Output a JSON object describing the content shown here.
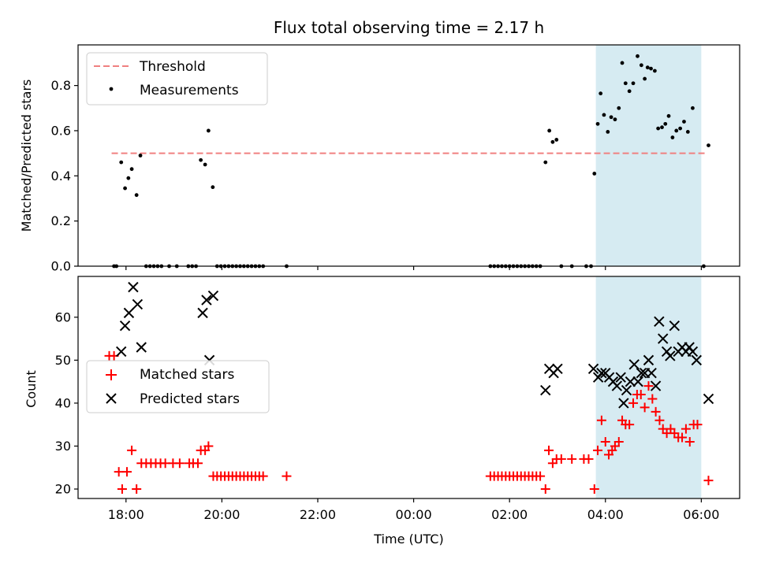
{
  "chart_data": [
    {
      "type": "scatter",
      "title": "Flux total observing time = 2.17 h",
      "xlabel": "",
      "ylabel": "Matched/Predicted stars",
      "x_unit": "hours (UTC), continuing past midnight",
      "xlim": [
        17.0,
        30.8
      ],
      "ylim": [
        0.0,
        0.98
      ],
      "yticks": [
        0.0,
        0.2,
        0.4,
        0.6,
        0.8
      ],
      "grid": false,
      "legend": {
        "placement": "top-left",
        "entries": [
          "Threshold",
          "Measurements"
        ]
      },
      "shaded_region": {
        "x": [
          27.8,
          30.0
        ],
        "color": "#add8e6"
      },
      "threshold": {
        "name": "Threshold",
        "value": 0.5,
        "x": [
          17.7,
          30.1
        ],
        "color": "#f08080"
      },
      "series": [
        {
          "name": "Measurements",
          "color": "#000000",
          "points": [
            [
              17.75,
              0
            ],
            [
              17.8,
              0
            ],
            [
              17.9,
              0.46
            ],
            [
              17.98,
              0.345
            ],
            [
              18.05,
              0.39
            ],
            [
              18.12,
              0.43
            ],
            [
              18.22,
              0.315
            ],
            [
              18.3,
              0.49
            ],
            [
              18.42,
              0
            ],
            [
              18.5,
              0
            ],
            [
              18.58,
              0
            ],
            [
              18.66,
              0
            ],
            [
              18.74,
              0
            ],
            [
              18.9,
              0
            ],
            [
              19.06,
              0
            ],
            [
              19.3,
              0
            ],
            [
              19.38,
              0
            ],
            [
              19.46,
              0
            ],
            [
              19.56,
              0.47
            ],
            [
              19.65,
              0.45
            ],
            [
              19.72,
              0.6
            ],
            [
              19.81,
              0.35
            ],
            [
              19.9,
              0
            ],
            [
              19.98,
              0
            ],
            [
              20.06,
              0
            ],
            [
              20.14,
              0
            ],
            [
              20.22,
              0
            ],
            [
              20.3,
              0
            ],
            [
              20.38,
              0
            ],
            [
              20.46,
              0
            ],
            [
              20.54,
              0
            ],
            [
              20.62,
              0
            ],
            [
              20.7,
              0
            ],
            [
              20.78,
              0
            ],
            [
              20.86,
              0
            ],
            [
              21.35,
              0
            ],
            [
              25.6,
              0
            ],
            [
              25.68,
              0
            ],
            [
              25.76,
              0
            ],
            [
              25.84,
              0
            ],
            [
              25.92,
              0
            ],
            [
              26.0,
              0
            ],
            [
              26.08,
              0
            ],
            [
              26.16,
              0
            ],
            [
              26.24,
              0
            ],
            [
              26.32,
              0
            ],
            [
              26.4,
              0
            ],
            [
              26.48,
              0
            ],
            [
              26.56,
              0
            ],
            [
              26.64,
              0
            ],
            [
              26.75,
              0.46
            ],
            [
              26.83,
              0.6
            ],
            [
              26.9,
              0.55
            ],
            [
              26.98,
              0.56
            ],
            [
              27.08,
              0
            ],
            [
              27.3,
              0
            ],
            [
              27.6,
              0
            ],
            [
              27.7,
              0
            ],
            [
              27.77,
              0.41
            ],
            [
              27.84,
              0.63
            ],
            [
              27.9,
              0.765
            ],
            [
              27.97,
              0.67
            ],
            [
              28.05,
              0.595
            ],
            [
              28.12,
              0.66
            ],
            [
              28.2,
              0.65
            ],
            [
              28.28,
              0.7
            ],
            [
              28.35,
              0.9
            ],
            [
              28.42,
              0.81
            ],
            [
              28.5,
              0.775
            ],
            [
              28.58,
              0.81
            ],
            [
              28.67,
              0.93
            ],
            [
              28.75,
              0.89
            ],
            [
              28.82,
              0.83
            ],
            [
              28.88,
              0.88
            ],
            [
              28.95,
              0.875
            ],
            [
              29.03,
              0.865
            ],
            [
              29.1,
              0.61
            ],
            [
              29.18,
              0.615
            ],
            [
              29.25,
              0.63
            ],
            [
              29.32,
              0.665
            ],
            [
              29.4,
              0.57
            ],
            [
              29.48,
              0.6
            ],
            [
              29.56,
              0.61
            ],
            [
              29.64,
              0.64
            ],
            [
              29.72,
              0.595
            ],
            [
              29.82,
              0.7
            ],
            [
              30.05,
              0
            ],
            [
              30.15,
              0.535
            ]
          ]
        }
      ]
    },
    {
      "type": "scatter",
      "title": "",
      "xlabel": "Time (UTC)",
      "ylabel": "Count",
      "x_unit": "hours (UTC), continuing past midnight",
      "xlim": [
        17.0,
        30.8
      ],
      "ylim": [
        17.8,
        69.5
      ],
      "yticks": [
        20,
        30,
        40,
        50,
        60
      ],
      "xticks": [
        {
          "value": 18,
          "label": "18:00"
        },
        {
          "value": 20,
          "label": "20:00"
        },
        {
          "value": 22,
          "label": "22:00"
        },
        {
          "value": 24,
          "label": "00:00"
        },
        {
          "value": 26,
          "label": "02:00"
        },
        {
          "value": 28,
          "label": "04:00"
        },
        {
          "value": 30,
          "label": "06:00"
        }
      ],
      "grid": false,
      "legend": {
        "placement": "center-left",
        "entries": [
          "Matched stars",
          "Predicted stars"
        ]
      },
      "shaded_region": {
        "x": [
          27.8,
          30.0
        ],
        "color": "#add8e6"
      },
      "series": [
        {
          "name": "Matched stars",
          "marker": "+",
          "color": "#ff0000",
          "points": [
            [
              17.65,
              51
            ],
            [
              17.75,
              51
            ],
            [
              17.85,
              24
            ],
            [
              17.92,
              20
            ],
            [
              18.02,
              24
            ],
            [
              18.12,
              29
            ],
            [
              18.22,
              20
            ],
            [
              18.32,
              26
            ],
            [
              18.42,
              26
            ],
            [
              18.52,
              26
            ],
            [
              18.62,
              26
            ],
            [
              18.72,
              26
            ],
            [
              18.82,
              26
            ],
            [
              18.98,
              26
            ],
            [
              19.12,
              26
            ],
            [
              19.32,
              26
            ],
            [
              19.4,
              26
            ],
            [
              19.5,
              26
            ],
            [
              19.56,
              29
            ],
            [
              19.65,
              29
            ],
            [
              19.72,
              30
            ],
            [
              19.82,
              23
            ],
            [
              19.9,
              23
            ],
            [
              19.98,
              23
            ],
            [
              20.06,
              23
            ],
            [
              20.14,
              23
            ],
            [
              20.22,
              23
            ],
            [
              20.3,
              23
            ],
            [
              20.38,
              23
            ],
            [
              20.46,
              23
            ],
            [
              20.54,
              23
            ],
            [
              20.62,
              23
            ],
            [
              20.7,
              23
            ],
            [
              20.78,
              23
            ],
            [
              20.86,
              23
            ],
            [
              21.35,
              23
            ],
            [
              25.6,
              23
            ],
            [
              25.68,
              23
            ],
            [
              25.76,
              23
            ],
            [
              25.84,
              23
            ],
            [
              25.92,
              23
            ],
            [
              26.0,
              23
            ],
            [
              26.08,
              23
            ],
            [
              26.16,
              23
            ],
            [
              26.24,
              23
            ],
            [
              26.32,
              23
            ],
            [
              26.4,
              23
            ],
            [
              26.48,
              23
            ],
            [
              26.56,
              23
            ],
            [
              26.64,
              23
            ],
            [
              26.75,
              20
            ],
            [
              26.82,
              29
            ],
            [
              26.9,
              26
            ],
            [
              26.98,
              27
            ],
            [
              27.08,
              27
            ],
            [
              27.3,
              27
            ],
            [
              27.55,
              27
            ],
            [
              27.65,
              27
            ],
            [
              27.77,
              20
            ],
            [
              27.84,
              29
            ],
            [
              27.92,
              36
            ],
            [
              28.0,
              31
            ],
            [
              28.07,
              28
            ],
            [
              28.14,
              29
            ],
            [
              28.2,
              30
            ],
            [
              28.28,
              31
            ],
            [
              28.35,
              36
            ],
            [
              28.42,
              35
            ],
            [
              28.5,
              35
            ],
            [
              28.58,
              40
            ],
            [
              28.66,
              42
            ],
            [
              28.74,
              42
            ],
            [
              28.82,
              39
            ],
            [
              28.9,
              44
            ],
            [
              28.98,
              41
            ],
            [
              29.05,
              38
            ],
            [
              29.13,
              36
            ],
            [
              29.2,
              34
            ],
            [
              29.28,
              33
            ],
            [
              29.36,
              34
            ],
            [
              29.44,
              33
            ],
            [
              29.52,
              32
            ],
            [
              29.6,
              32
            ],
            [
              29.68,
              34
            ],
            [
              29.76,
              31
            ],
            [
              29.84,
              35
            ],
            [
              29.92,
              35
            ],
            [
              30.15,
              22
            ]
          ]
        },
        {
          "name": "Predicted stars",
          "marker": "x",
          "color": "#000000",
          "points": [
            [
              17.9,
              52
            ],
            [
              17.98,
              58
            ],
            [
              18.06,
              61
            ],
            [
              18.15,
              67
            ],
            [
              18.24,
              63
            ],
            [
              18.32,
              53
            ],
            [
              19.6,
              61
            ],
            [
              19.68,
              64
            ],
            [
              19.74,
              50
            ],
            [
              19.82,
              65
            ],
            [
              26.75,
              43
            ],
            [
              26.83,
              48
            ],
            [
              26.92,
              47
            ],
            [
              27.0,
              48
            ],
            [
              27.75,
              48
            ],
            [
              27.85,
              46
            ],
            [
              27.92,
              47
            ],
            [
              28.0,
              47
            ],
            [
              28.08,
              46
            ],
            [
              28.16,
              45
            ],
            [
              28.24,
              44
            ],
            [
              28.32,
              46
            ],
            [
              28.38,
              40
            ],
            [
              28.44,
              43
            ],
            [
              28.52,
              45
            ],
            [
              28.6,
              49
            ],
            [
              28.68,
              45
            ],
            [
              28.75,
              47
            ],
            [
              28.82,
              47
            ],
            [
              28.9,
              50
            ],
            [
              28.96,
              47
            ],
            [
              29.05,
              44
            ],
            [
              29.12,
              59
            ],
            [
              29.2,
              55
            ],
            [
              29.28,
              52
            ],
            [
              29.35,
              51
            ],
            [
              29.44,
              58
            ],
            [
              29.52,
              52
            ],
            [
              29.6,
              53
            ],
            [
              29.68,
              52
            ],
            [
              29.75,
              53
            ],
            [
              29.82,
              52
            ],
            [
              29.9,
              50
            ],
            [
              30.15,
              41
            ]
          ]
        }
      ]
    }
  ]
}
